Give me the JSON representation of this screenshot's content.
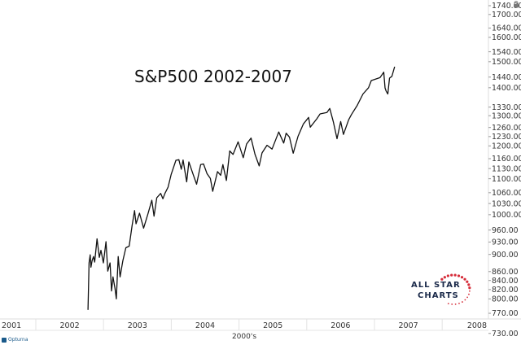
{
  "chart_data": {
    "type": "line",
    "title": "S&P500 2002-2007",
    "xlabel": "2000's",
    "ylabel": "",
    "y_scale": "log",
    "ylim": [
      760,
      1760
    ],
    "y_axis_position": "right",
    "x_tick_labels": [
      "2001",
      "2002",
      "2003",
      "2004",
      "2005",
      "2006",
      "2007",
      "2008"
    ],
    "y_tick_labels": [
      "1740.00",
      "1700.00",
      "1640.00",
      "1600.00",
      "1540.00",
      "1500.00",
      "1440.00",
      "1400.00",
      "1330.00",
      "1300.00",
      "1260.00",
      "1230.00",
      "1200.00",
      "1160.00",
      "1130.00",
      "1100.00",
      "1060.00",
      "1030.00",
      "1000.00",
      "960.00",
      "930.00",
      "900.00",
      "860.00",
      "840.00",
      "820.00",
      "800.00",
      "770.00",
      "730.00"
    ],
    "grid": false,
    "line_color": "#111111",
    "series": [
      {
        "x": [
          "2002-10-09",
          "2002-10-15",
          "2002-10-21",
          "2002-10-25",
          "2002-10-31",
          "2002-11-08",
          "2002-11-14",
          "2002-11-27",
          "2002-12-09",
          "2002-12-18",
          "2002-12-31",
          "2003-01-14",
          "2003-01-24",
          "2003-02-05",
          "2003-02-13",
          "2003-02-21",
          "2003-03-04",
          "2003-03-11",
          "2003-03-21",
          "2003-03-31",
          "2003-04-15",
          "2003-05-01",
          "2003-05-19",
          "2003-06-04",
          "2003-06-17",
          "2003-06-25",
          "2003-07-14",
          "2003-08-05",
          "2003-08-28",
          "2003-09-18",
          "2003-09-30",
          "2003-10-15",
          "2003-11-05",
          "2003-11-17",
          "2003-11-28",
          "2003-12-15",
          "2003-12-31",
          "2004-01-26",
          "2004-02-11",
          "2004-02-24",
          "2004-03-05",
          "2004-03-24",
          "2004-04-05",
          "2004-04-28",
          "2004-05-17",
          "2004-06-08",
          "2004-06-23",
          "2004-07-12",
          "2004-07-30",
          "2004-08-12",
          "2004-09-07",
          "2004-09-24",
          "2004-10-06",
          "2004-10-25",
          "2004-11-12",
          "2004-11-30",
          "2004-12-27",
          "2005-01-24",
          "2005-02-11",
          "2005-03-07",
          "2005-03-28",
          "2005-04-20",
          "2005-05-05",
          "2005-06-01",
          "2005-06-28",
          "2005-08-03",
          "2005-08-30",
          "2005-09-12",
          "2005-09-30",
          "2005-10-20",
          "2005-11-15",
          "2005-12-14",
          "2006-01-11",
          "2006-01-20",
          "2006-02-24",
          "2006-03-14",
          "2006-04-20",
          "2006-05-05",
          "2006-05-24",
          "2006-06-13",
          "2006-07-03",
          "2006-07-18",
          "2006-08-15",
          "2006-08-30",
          "2006-09-29",
          "2006-10-31",
          "2006-11-30",
          "2006-12-15",
          "2007-01-31",
          "2007-02-20",
          "2007-02-27",
          "2007-03-05",
          "2007-03-14",
          "2007-03-23",
          "2007-04-05",
          "2007-04-20"
        ],
        "y": [
          777,
          880,
          899,
          870,
          885,
          895,
          882,
          938,
          893,
          910,
          880,
          931,
          861,
          880,
          817,
          848,
          822,
          800,
          895,
          848,
          885,
          916,
          920,
          972,
          1011,
          976,
          1004,
          965,
          1002,
          1039,
          996,
          1046,
          1058,
          1043,
          1058,
          1076,
          1112,
          1155,
          1157,
          1128,
          1156,
          1091,
          1150,
          1113,
          1084,
          1142,
          1144,
          1115,
          1101,
          1064,
          1121,
          1110,
          1142,
          1095,
          1184,
          1173,
          1213,
          1163,
          1206,
          1225,
          1174,
          1138,
          1178,
          1202,
          1190,
          1245,
          1209,
          1241,
          1228,
          1177,
          1231,
          1272,
          1294,
          1261,
          1289,
          1306,
          1311,
          1325,
          1280,
          1223,
          1280,
          1237,
          1286,
          1304,
          1335,
          1377,
          1400,
          1427,
          1438,
          1459,
          1399,
          1387,
          1377,
          1436,
          1443,
          1480
        ]
      }
    ]
  },
  "logo": {
    "text_line1": "ALL STAR",
    "text_line2": "CHARTS",
    "brand_colors": [
      "#1b2a4a",
      "#d62d3a"
    ]
  },
  "footer": {
    "brand": "Opturna"
  },
  "icons": {
    "lock": "lock-icon"
  }
}
